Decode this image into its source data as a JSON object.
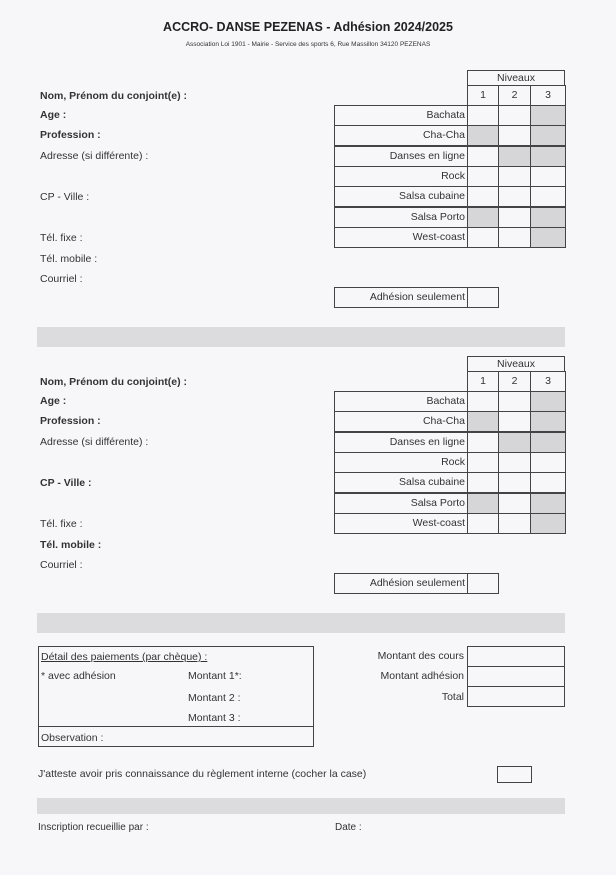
{
  "header": {
    "title": "ACCRO- DANSE PEZENAS - Adhésion 2024/2025",
    "subtitle": "Association Loi 1901 - Mairie - Service des sports  6, Rue Massillon 34120 PEZENAS"
  },
  "members": [
    {
      "fields": [
        {
          "label": "Nom, Prénom du conjoint(e) :",
          "bold": true
        },
        {
          "label": "Age :",
          "bold": true
        },
        {
          "label": "Profession :",
          "bold": true
        },
        {
          "label": "Adresse (si différente) :",
          "bold": false
        },
        {
          "label": "CP - Ville :",
          "bold": false
        },
        {
          "label": "Tél. fixe :",
          "bold": false
        },
        {
          "label": "Tél. mobile :",
          "bold": false
        },
        {
          "label": "Courriel :",
          "bold": false
        }
      ],
      "levels_header": "Niveaux",
      "levels": [
        "1",
        "2",
        "3"
      ],
      "dances": [
        {
          "name": "Bachata",
          "shaded": [
            false,
            false,
            true
          ]
        },
        {
          "name": "Cha-Cha",
          "shaded": [
            true,
            false,
            true
          ]
        },
        {
          "name": "Danses en ligne",
          "shaded": [
            false,
            true,
            true
          ]
        },
        {
          "name": "Rock",
          "shaded": [
            false,
            false,
            false
          ]
        },
        {
          "name": "Salsa cubaine",
          "shaded": [
            false,
            false,
            false
          ]
        },
        {
          "name": "Salsa Porto",
          "shaded": [
            true,
            false,
            true
          ]
        },
        {
          "name": "West-coast",
          "shaded": [
            false,
            false,
            true
          ]
        }
      ],
      "membership_only": "Adhésion seulement"
    },
    {
      "fields": [
        {
          "label": "Nom, Prénom du conjoint(e) :",
          "bold": true
        },
        {
          "label": "Age :",
          "bold": true
        },
        {
          "label": "Profession :",
          "bold": true
        },
        {
          "label": "Adresse (si différente) :",
          "bold": false
        },
        {
          "label": "CP - Ville :",
          "bold": true
        },
        {
          "label": "Tél. fixe :",
          "bold": false
        },
        {
          "label": "Tél. mobile :",
          "bold": true
        },
        {
          "label": "Courriel :",
          "bold": false
        }
      ],
      "levels_header": "Niveaux",
      "levels": [
        "1",
        "2",
        "3"
      ],
      "dances": [
        {
          "name": "Bachata",
          "shaded": [
            false,
            false,
            true
          ]
        },
        {
          "name": "Cha-Cha",
          "shaded": [
            true,
            false,
            true
          ]
        },
        {
          "name": "Danses en ligne",
          "shaded": [
            false,
            true,
            true
          ]
        },
        {
          "name": "Rock",
          "shaded": [
            false,
            false,
            false
          ]
        },
        {
          "name": "Salsa cubaine",
          "shaded": [
            false,
            false,
            false
          ]
        },
        {
          "name": "Salsa Porto",
          "shaded": [
            true,
            false,
            true
          ]
        },
        {
          "name": "West-coast",
          "shaded": [
            false,
            false,
            true
          ]
        }
      ],
      "membership_only": "Adhésion seulement"
    }
  ],
  "payment": {
    "title": "Détail des paiements (par chèque) :",
    "note": "* avec adhésion",
    "amount1": "Montant 1*:",
    "amount2": "Montant 2  :",
    "amount3": "Montant 3  :",
    "observation": "Observation :"
  },
  "totals": {
    "courses": "Montant des cours",
    "membership": "Montant adhésion",
    "total": "Total"
  },
  "attest": "J'atteste avoir pris connaissance du règlement interne (cocher la case)",
  "footer": {
    "collected_by": "Inscription recueillie par :",
    "date": "Date :"
  },
  "colors": {
    "shade": "#d6d6d8",
    "band": "#dcdcde",
    "border": "#444444"
  }
}
